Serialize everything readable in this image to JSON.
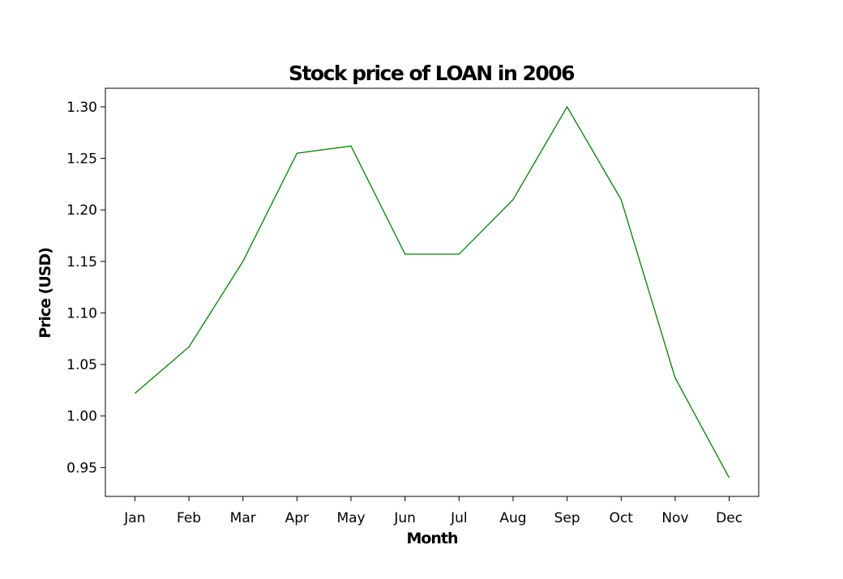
{
  "chart_data": {
    "type": "line",
    "title": "Stock price of LOAN in 2006",
    "xlabel": "Month",
    "ylabel": "Price (USD)",
    "categories": [
      "Jan",
      "Feb",
      "Mar",
      "Apr",
      "May",
      "Jun",
      "Jul",
      "Aug",
      "Sep",
      "Oct",
      "Nov",
      "Dec"
    ],
    "series": [
      {
        "values": [
          1.022,
          1.067,
          1.15,
          1.255,
          1.262,
          1.157,
          1.157,
          1.21,
          1.3,
          1.21,
          1.037,
          0.94
        ],
        "color": "#008000"
      }
    ],
    "yticks": [
      "0.95",
      "1.00",
      "1.05",
      "1.10",
      "1.15",
      "1.20",
      "1.25",
      "1.30"
    ],
    "ylim": [
      0.922,
      1.318
    ],
    "grid": false,
    "legend": false
  }
}
